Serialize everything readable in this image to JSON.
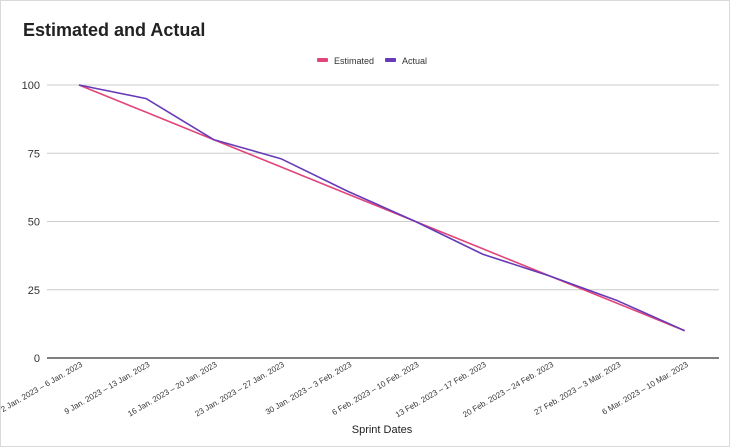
{
  "chart_data": {
    "type": "line",
    "title": "Estimated and Actual",
    "xlabel": "Sprint Dates",
    "ylabel": "",
    "ylim": [
      0,
      100
    ],
    "yticks": [
      0,
      25,
      50,
      75,
      100
    ],
    "grid": true,
    "legend_position": "top-center",
    "categories": [
      "2 Jan. 2023 – 6 Jan. 2023",
      "9 Jan. 2023 – 13 Jan. 2023",
      "16 Jan. 2023 – 20 Jan. 2023",
      "23 Jan. 2023 – 27 Jan. 2023",
      "30 Jan. 2023 – 3 Feb. 2023",
      "6 Feb. 2023 – 10 Feb. 2023",
      "13 Feb. 2023 – 17 Feb. 2023",
      "20 Feb. 2023 – 24 Feb. 2023",
      "27 Feb. 2023 – 3 Mar. 2023",
      "6 Mar. 2023 – 10 Mar. 2023"
    ],
    "series": [
      {
        "name": "Estimated",
        "color": "#e0457b",
        "values": [
          100,
          90,
          80,
          70,
          60,
          50,
          40,
          30,
          20,
          10
        ]
      },
      {
        "name": "Actual",
        "color": "#673ab7",
        "values": [
          100,
          95,
          80,
          73,
          61,
          50,
          38,
          30,
          21,
          10
        ]
      }
    ]
  }
}
